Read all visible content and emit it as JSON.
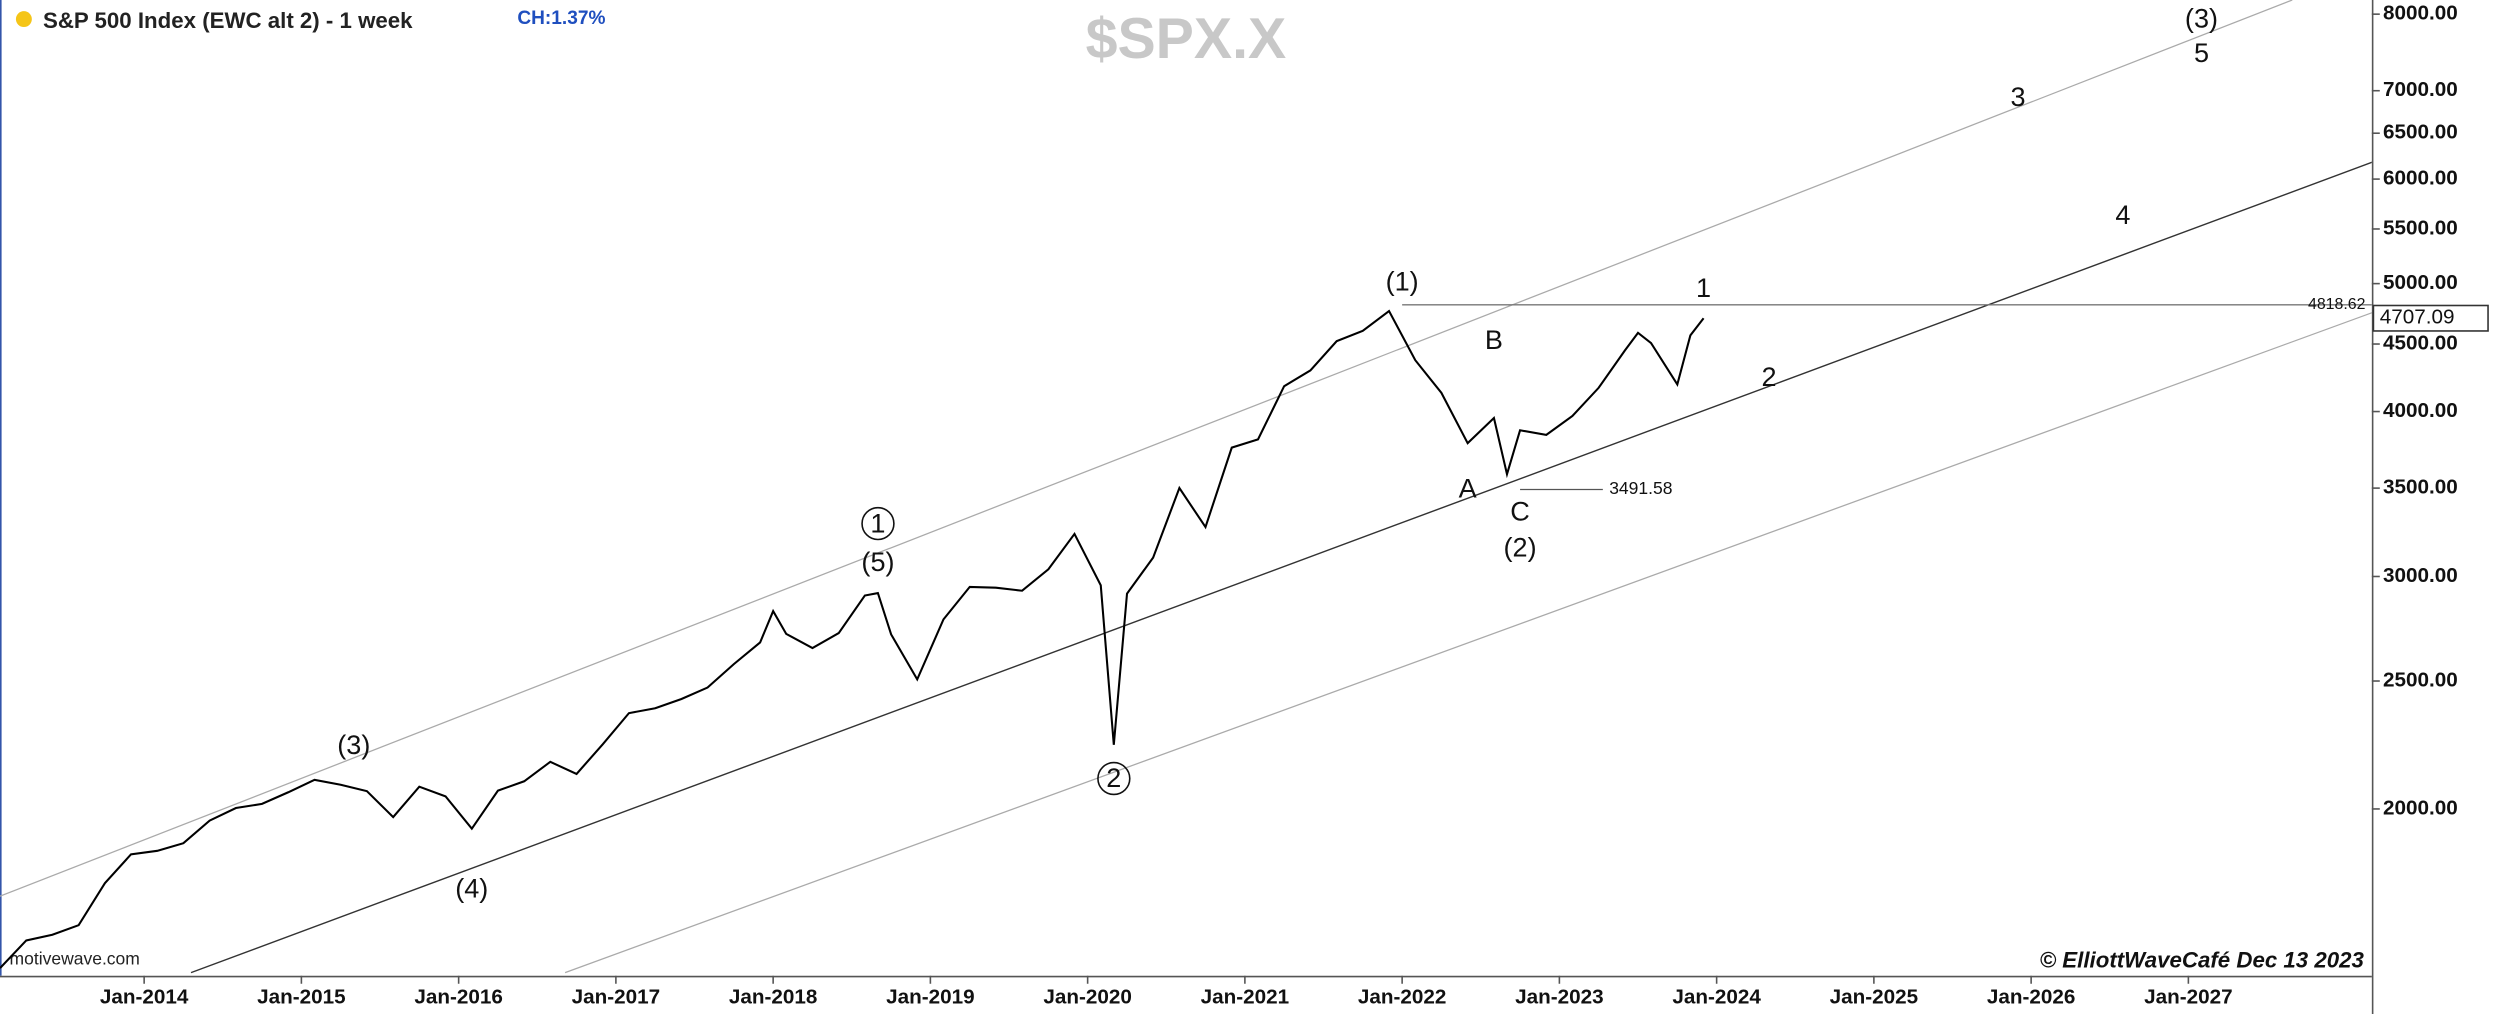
{
  "chart_data": {
    "type": "line",
    "title": "S&P 500 Index (EWC alt 2) - 1 week",
    "change_label": "CH:1.37%",
    "symbol": "$SPX.X",
    "footer": "© ElliottWaveCafé Dec 13 2023",
    "source": "motivewave.com",
    "log_scale": true,
    "x": [
      "2013-02",
      "2013-04",
      "2013-06",
      "2013-08",
      "2013-10",
      "2013-12",
      "2014-02",
      "2014-04",
      "2014-06",
      "2014-08",
      "2014-10",
      "2014-12",
      "2015-02",
      "2015-04",
      "2015-06",
      "2015-08",
      "2015-10",
      "2015-12",
      "2016-02",
      "2016-04",
      "2016-06",
      "2016-08",
      "2016-10",
      "2016-12",
      "2017-02",
      "2017-04",
      "2017-06",
      "2017-08",
      "2017-10",
      "2017-12",
      "2018-01",
      "2018-02",
      "2018-04",
      "2018-06",
      "2018-08",
      "2018-09",
      "2018-10",
      "2018-12",
      "2019-02",
      "2019-04",
      "2019-06",
      "2019-08",
      "2019-10",
      "2019-12",
      "2020-02",
      "2020-03",
      "2020-04",
      "2020-06",
      "2020-08",
      "2020-10",
      "2020-12",
      "2021-02",
      "2021-04",
      "2021-06",
      "2021-08",
      "2021-10",
      "2021-12",
      "2022-02",
      "2022-04",
      "2022-06",
      "2022-08",
      "2022-09",
      "2022-10",
      "2022-12",
      "2023-02",
      "2023-04",
      "2023-06",
      "2023-07",
      "2023-08",
      "2023-10",
      "2023-11",
      "2023-12"
    ],
    "series": [
      {
        "name": "S&P 500",
        "color": "#000000",
        "values": [
          1515,
          1590,
          1606,
          1633,
          1757,
          1848,
          1859,
          1884,
          1960,
          2003,
          2018,
          2059,
          2104,
          2086,
          2063,
          1972,
          2079,
          2044,
          1932,
          2065,
          2099,
          2171,
          2126,
          2239,
          2364,
          2384,
          2423,
          2472,
          2575,
          2674,
          2824,
          2714,
          2648,
          2718,
          2902,
          2914,
          2712,
          2507,
          2784,
          2946,
          2942,
          2926,
          3038,
          3231,
          2954,
          2237,
          2912,
          3100,
          3500,
          3270,
          3756,
          3811,
          4181,
          4298,
          4523,
          4605,
          4766,
          4374,
          4132,
          3785,
          3955,
          3586,
          3872,
          3840,
          3970,
          4169,
          4450,
          4589,
          4508,
          4194,
          4568,
          4707
        ]
      }
    ],
    "xlim": [
      "2013-02",
      "2028-03"
    ],
    "ylim": [
      1495,
      8200
    ],
    "xticks": [
      {
        "value": "2014-01",
        "label": "Jan-2014"
      },
      {
        "value": "2015-01",
        "label": "Jan-2015"
      },
      {
        "value": "2016-01",
        "label": "Jan-2016"
      },
      {
        "value": "2017-01",
        "label": "Jan-2017"
      },
      {
        "value": "2018-01",
        "label": "Jan-2018"
      },
      {
        "value": "2019-01",
        "label": "Jan-2019"
      },
      {
        "value": "2020-01",
        "label": "Jan-2020"
      },
      {
        "value": "2021-01",
        "label": "Jan-2021"
      },
      {
        "value": "2022-01",
        "label": "Jan-2022"
      },
      {
        "value": "2023-01",
        "label": "Jan-2023"
      },
      {
        "value": "2024-01",
        "label": "Jan-2024"
      },
      {
        "value": "2025-01",
        "label": "Jan-2025"
      },
      {
        "value": "2026-01",
        "label": "Jan-2026"
      },
      {
        "value": "2027-01",
        "label": "Jan-2027"
      }
    ],
    "yticks": [
      {
        "value": 2000,
        "label": "2000.00"
      },
      {
        "value": 2500,
        "label": "2500.00"
      },
      {
        "value": 3000,
        "label": "3000.00"
      },
      {
        "value": 3500,
        "label": "3500.00"
      },
      {
        "value": 4000,
        "label": "4000.00"
      },
      {
        "value": 4500,
        "label": "4500.00"
      },
      {
        "value": 5000,
        "label": "5000.00"
      },
      {
        "value": 5500,
        "label": "5500.00"
      },
      {
        "value": 6000,
        "label": "6000.00"
      },
      {
        "value": 6500,
        "label": "6500.00"
      },
      {
        "value": 7000,
        "label": "7000.00"
      },
      {
        "value": 8000,
        "label": "8000.00"
      }
    ],
    "high_line": 4818.62,
    "low_line": 3491.58,
    "last_price": 4707.09,
    "annotations": [
      {
        "text": "(3)",
        "x": "2015-05",
        "y": 2235,
        "circle": false
      },
      {
        "text": "(4)",
        "x": "2016-02",
        "y": 1740,
        "circle": false
      },
      {
        "text": "1",
        "x": "2018-09",
        "y": 3290,
        "circle": true
      },
      {
        "text": "(5)",
        "x": "2018-09",
        "y": 3075,
        "circle": false
      },
      {
        "text": "2",
        "x": "2020-03",
        "y": 2109,
        "circle": true
      },
      {
        "text": "(1)",
        "x": "2022-01",
        "y": 5014,
        "circle": false
      },
      {
        "text": "A",
        "x": "2022-06",
        "y": 3497,
        "circle": false
      },
      {
        "text": "B",
        "x": "2022-08",
        "y": 4528,
        "circle": false
      },
      {
        "text": "C",
        "x": "2022-10",
        "y": 3358,
        "circle": false
      },
      {
        "text": "(2)",
        "x": "2022-10",
        "y": 3153,
        "circle": false
      },
      {
        "text": "1",
        "x": "2023-12",
        "y": 4958,
        "circle": false
      },
      {
        "text": "2",
        "x": "2024-05",
        "y": 4248,
        "circle": false
      },
      {
        "text": "3",
        "x": "2025-12",
        "y": 6923,
        "circle": false
      },
      {
        "text": "4",
        "x": "2026-08",
        "y": 5631,
        "circle": false
      },
      {
        "text": "(3)",
        "x": "2027-02",
        "y": 7936,
        "circle": false
      },
      {
        "text": "5",
        "x": "2027-02",
        "y": 7470,
        "circle": false
      }
    ]
  }
}
